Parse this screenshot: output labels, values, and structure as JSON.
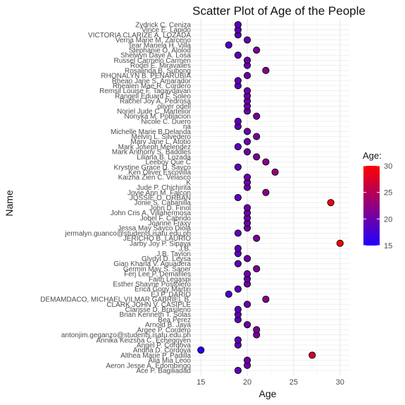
{
  "chart_data": {
    "type": "scatter",
    "title": "Scatter Plot of Age of the People",
    "xlabel": "Age",
    "ylabel": "Name",
    "xlim": [
      14.3,
      30.7
    ],
    "x_ticks": [
      15,
      20,
      25,
      30
    ],
    "grid": true,
    "legend": {
      "title": "Age:",
      "position": "right",
      "min": 15,
      "max": 30,
      "ticks": [
        15,
        20,
        25,
        30
      ],
      "color_low": "#2200ff",
      "color_high": "#ff0000"
    },
    "names": [
      "Ace P. Bagiliadad",
      "Aeron Jesse A. Edombingo",
      "Alia Mia Leoo",
      "Althea Marie P. Padilla",
      "Andria D. Cordova",
      "Angel P. Cordova",
      "Annika Keizsha C. Echegoyen",
      "antonjim.geganzo@students.isatu.edu.ph",
      "Argee P. Cordero",
      "Arnold B. Jaya",
      "Bea Perez",
      "Brian Kenneth T. Solas",
      "Clarisse D. Brasileno",
      "CLARK JOHN V. CASIPLE",
      "DEMAMDACO, MICHAEL VILMAR GABRIEL B.",
      "EJ P. DARIO",
      "Erica Gogy Martin",
      "Esther Shayne Postolero",
      "Faith Legaspi",
      "Ferj Lee P. Demafiles",
      "Germin May S. Saner",
      "Gian Kharla V. Aguadera",
      "Glydyl D. Leysa",
      "J.B. Taylon",
      "J.B.",
      "Jarby Joy P. Sipaya",
      "JERICHO B. LAURIO",
      "jermalyn.guanco@students.isatu.edu.ph",
      "Jessa May Sayco Diola",
      "Joanne Fraxy",
      "Jobel F. Cabrido",
      "John Cris A. Villahermosa",
      "John D. Finol",
      "Jonie S. Cabanilla",
      "JOSSIE O. ORBAN",
      "Jovie Ann M. Falcon",
      "Jude P. Chichirita",
      "K",
      "Kaizha Zien C. Velasco",
      "Ken Oliver Escovilla",
      "Krystine Grace D. Sayco",
      "Leeboy Que C",
      "Liliana B. Lozada",
      "Mark Anthony S. Baddles",
      "Mark Joseph Melendez",
      "Mary Jane L. Atotio",
      "Melvin L. Silvedero",
      "Michelle Marie B.Delanda",
      "na",
      "Nicole C. Duero",
      "Nonyka M. Poblacion",
      "Noriel Jude C. Martelior",
      "oliver odell",
      "Rachel Joy A. Pedrosa",
      "Rangell Eduard F. Soleo",
      "Remsil Louise F. Tagaydavan",
      "Rhealen Mae R. Cordero",
      "Rhean Jane S. Amarador",
      "RHONALYN B. PENARUBIA",
      "Rosalinda B. Subong",
      "Rodel E. Miravalles",
      "Russel Carmelo Carmen",
      "Shelwyn Dave A. Losa",
      "Stephanie O. Alolod",
      "Tear Mariela H. Villa",
      "Verna Marie M. Zarceno",
      "VICTORIA CLARIZE A. LOZADA",
      "Vince E. Lapido",
      "Zydrick C. Ceniza"
    ],
    "ages": [
      19,
      20,
      20,
      27,
      15,
      19,
      19,
      21,
      21,
      20,
      19,
      19,
      19,
      20,
      22,
      18,
      19,
      20,
      20,
      20,
      21,
      19,
      20,
      19,
      19,
      30,
      21,
      19,
      20,
      20,
      20,
      20,
      20,
      29,
      19,
      22,
      20,
      20,
      20,
      23,
      19,
      22,
      21,
      20,
      19,
      20,
      21,
      20,
      19,
      19,
      21,
      20,
      20,
      20,
      20,
      20,
      19,
      19,
      20,
      22,
      20,
      20,
      19,
      21,
      18,
      20,
      19,
      19,
      19
    ]
  }
}
